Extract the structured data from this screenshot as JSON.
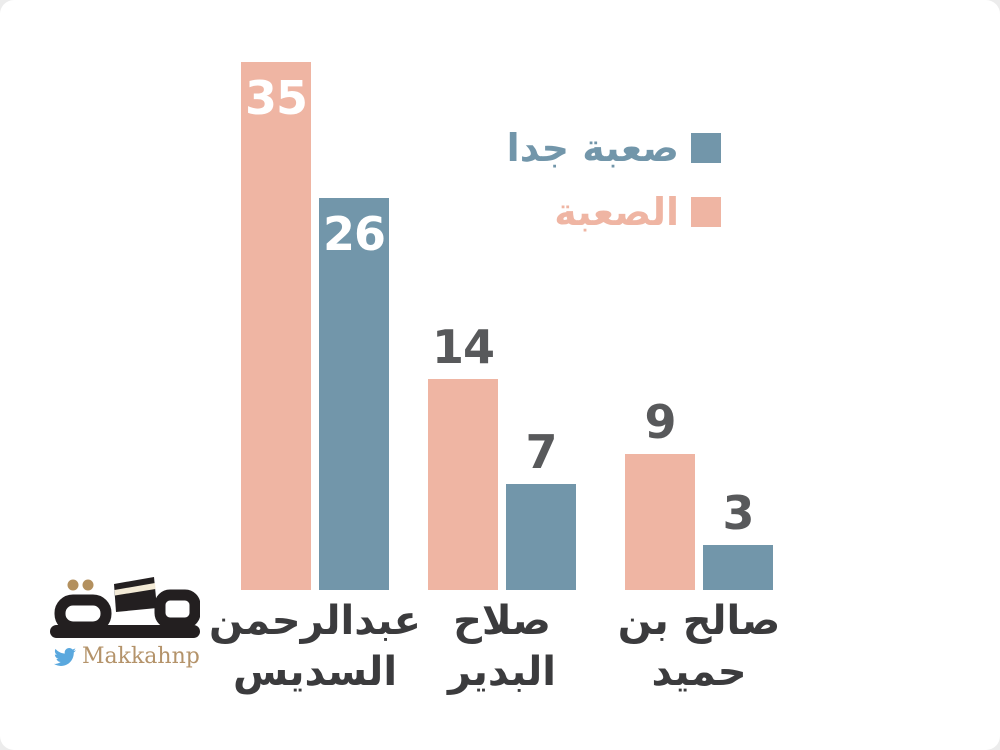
{
  "legend": {
    "items": [
      {
        "label": "صعبة جدا",
        "color": "#7296aa"
      },
      {
        "label": "الصعبة",
        "color": "#efb5a3"
      }
    ]
  },
  "chart_data": {
    "type": "bar",
    "categories": [
      "عبدالرحمن السديس",
      "صلاح البدير",
      "صالح بن حميد"
    ],
    "category_label_lines": [
      [
        "عبدالرحمن",
        "السديس"
      ],
      [
        "صلاح",
        "البدير"
      ],
      [
        "صالح بن",
        "حميد"
      ]
    ],
    "series": [
      {
        "name": "الصعبة",
        "color": "#efb5a3",
        "values": [
          35,
          14,
          9
        ]
      },
      {
        "name": "صعبة جدا",
        "color": "#7296aa",
        "values": [
          26,
          7,
          3
        ]
      }
    ],
    "title": "",
    "xlabel": "",
    "ylabel": "",
    "ylim": [
      0,
      35
    ],
    "grid": false,
    "legend_position": "upper-right",
    "value_label_inside_color": "#ffffff",
    "value_label_outside_color": "#58595b",
    "value_label_inside_threshold": 20
  },
  "branding": {
    "logo_name": "مكة",
    "twitter_handle": "Makkahnp",
    "logo_color": "#231f20",
    "accent_gold": "#b3905e",
    "twitter_blue": "#5aa8de"
  }
}
